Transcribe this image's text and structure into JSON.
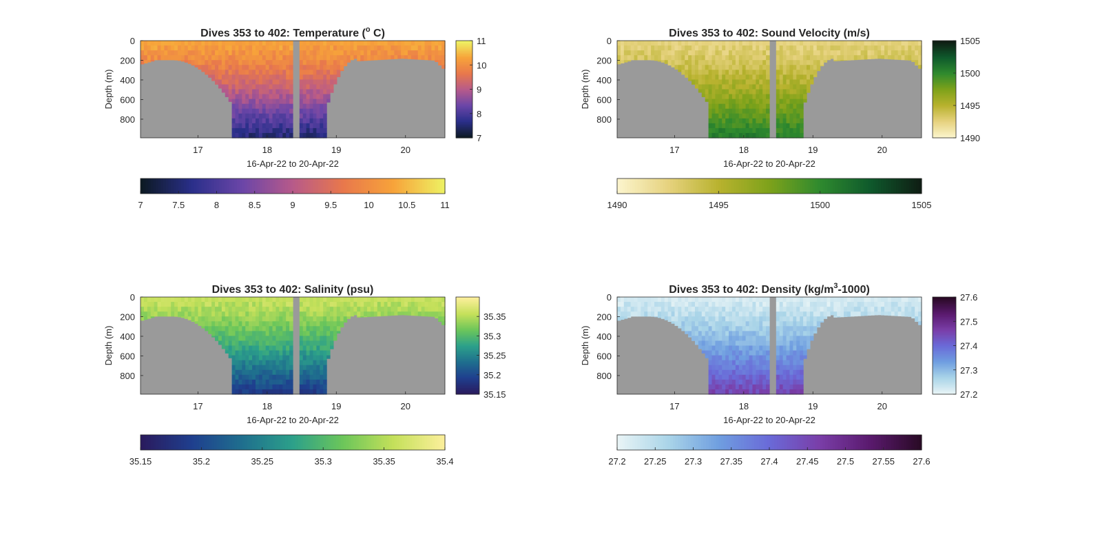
{
  "chart_data": [
    {
      "type": "heatmap",
      "title": "Dives 353 to 402: Temperature (",
      "title_sup": "o",
      "title_tail": " C)",
      "xlabel": "16-Apr-22 to 20-Apr-22",
      "ylabel": "Depth (m)",
      "xlim": [
        16.17,
        20.57
      ],
      "ylim": [
        990,
        0
      ],
      "x_ticks": [
        17,
        18,
        19,
        20
      ],
      "y_ticks": [
        0,
        200,
        400,
        600,
        800
      ],
      "colormap": [
        "#0d1a24",
        "#2a2f8a",
        "#6b46a8",
        "#b75a8a",
        "#e8784c",
        "#f7a33a",
        "#eef062"
      ],
      "clim": [
        7,
        11
      ],
      "side_colorbar_ticks": [
        "7",
        "8",
        "9",
        "10",
        "11"
      ],
      "bottom_colorbar_ticks": [
        "7",
        "7.5",
        "8",
        "8.5",
        "9",
        "9.5",
        "10",
        "10.5",
        "11"
      ],
      "surface_value": 10.3,
      "deep_value": 7.6,
      "field": "temperature",
      "gap_day": [
        18.38,
        18.47
      ]
    },
    {
      "type": "heatmap",
      "title": "Dives 353 to 402: Sound Velocity (m/s)",
      "title_sup": "",
      "title_tail": "",
      "xlabel": "16-Apr-22 to 20-Apr-22",
      "ylabel": "Depth (m)",
      "xlim": [
        16.17,
        20.57
      ],
      "ylim": [
        990,
        0
      ],
      "x_ticks": [
        17,
        18,
        19,
        20
      ],
      "y_ticks": [
        0,
        200,
        400,
        600,
        800
      ],
      "colormap": [
        "#fbf4cc",
        "#e6d27e",
        "#b8b22e",
        "#7ea21a",
        "#2f8a2e",
        "#0f5a2c",
        "#0f1e14"
      ],
      "clim": [
        1490,
        1505
      ],
      "side_colorbar_ticks": [
        "1490",
        "1495",
        "1500",
        "1505"
      ],
      "bottom_colorbar_ticks": [
        "1490",
        "1495",
        "1500",
        "1505"
      ],
      "surface_value": 1492.5,
      "deep_value": 1500.5,
      "field": "sound_velocity",
      "gap_day": [
        18.38,
        18.47
      ]
    },
    {
      "type": "heatmap",
      "title": "Dives 353 to 402: Salinity (psu)",
      "title_sup": "",
      "title_tail": "",
      "xlabel": "16-Apr-22 to 20-Apr-22",
      "ylabel": "Depth (m)",
      "xlim": [
        16.17,
        20.57
      ],
      "ylim": [
        990,
        0
      ],
      "x_ticks": [
        17,
        18,
        19,
        20
      ],
      "y_ticks": [
        0,
        200,
        400,
        600,
        800
      ],
      "colormap": [
        "#2a1b5e",
        "#1f3f8e",
        "#1f6f8e",
        "#2ca08a",
        "#6cc65a",
        "#c4e05a",
        "#fbef9a"
      ],
      "clim": [
        35.15,
        35.4
      ],
      "side_colorbar_ticks": [
        "35.15",
        "35.2",
        "35.25",
        "35.3",
        "35.35"
      ],
      "bottom_colorbar_ticks": [
        "35.15",
        "35.2",
        "35.25",
        "35.3",
        "35.35",
        "35.4"
      ],
      "surface_value": 35.36,
      "deep_value": 35.19,
      "field": "salinity",
      "gap_day": [
        18.38,
        18.47
      ]
    },
    {
      "type": "heatmap",
      "title": "Dives 353 to 402: Density (kg/m",
      "title_sup": "3",
      "title_tail": "-1000)",
      "xlabel": "16-Apr-22 to 20-Apr-22",
      "ylabel": "Depth (m)",
      "xlim": [
        16.17,
        20.57
      ],
      "ylim": [
        990,
        0
      ],
      "x_ticks": [
        17,
        18,
        19,
        20
      ],
      "y_ticks": [
        0,
        200,
        400,
        600,
        800
      ],
      "colormap": [
        "#e8f4f6",
        "#a9d4e8",
        "#6f9ee0",
        "#6a6ad8",
        "#7a3ea8",
        "#5a1a6e",
        "#2a0a26"
      ],
      "clim": [
        27.2,
        27.6
      ],
      "side_colorbar_ticks": [
        "27.2",
        "27.3",
        "27.4",
        "27.5",
        "27.6"
      ],
      "bottom_colorbar_ticks": [
        "27.2",
        "27.25",
        "27.3",
        "27.35",
        "27.4",
        "27.45",
        "27.5",
        "27.55",
        "27.6"
      ],
      "surface_value": 27.22,
      "deep_value": 27.45,
      "field": "density",
      "gap_day": [
        18.38,
        18.47
      ]
    }
  ],
  "colors": {
    "seafloor": "#9a9a9a",
    "axis": "#262626"
  }
}
